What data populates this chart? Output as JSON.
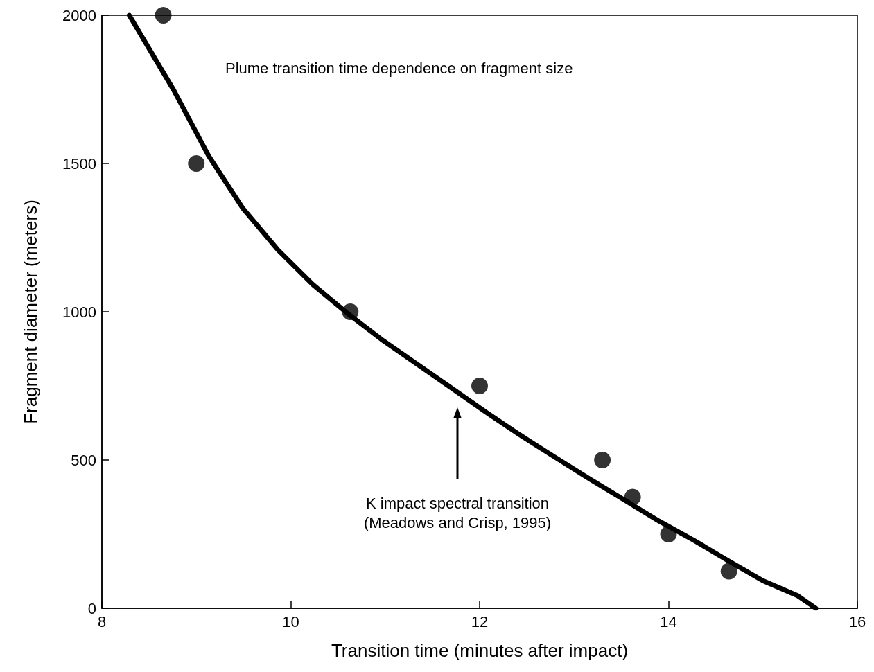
{
  "chart_data": {
    "type": "scatter",
    "title": "Plume transition time dependence on fragment size",
    "xlabel": "Transition time (minutes after impact)",
    "ylabel": "Fragment diameter (meters)",
    "xlim": [
      8,
      16
    ],
    "xticks": [
      8,
      10,
      12,
      14,
      16
    ],
    "ylim": [
      0,
      2000
    ],
    "yticks": [
      0,
      500,
      1000,
      1500,
      2000
    ],
    "grid": false,
    "annotations": [
      "K impact spectral transition\n(Meadows and Crisp, 1995)"
    ],
    "series": [
      {
        "type": "scatter",
        "color": "#000000",
        "marker": "circle",
        "x": [
          8.65,
          9.0,
          10.63,
          12.0,
          13.3,
          13.62,
          14.0,
          14.64
        ],
        "values": [
          2000,
          1500,
          1000,
          750,
          500,
          375,
          250,
          125
        ]
      },
      {
        "type": "line",
        "color": "#000000",
        "marker": "none",
        "line_style": "solid",
        "x": [
          8.29,
          8.76,
          9.13,
          9.49,
          9.86,
          10.23,
          10.6,
          10.96,
          11.33,
          11.7,
          12.07,
          12.43,
          12.8,
          13.17,
          13.54,
          13.9,
          14.27,
          14.64,
          15.0,
          15.37,
          15.56
        ],
        "values": [
          2000,
          1748,
          1526,
          1350,
          1210,
          1093,
          995,
          907,
          825,
          743,
          661,
          584,
          509,
          435,
          364,
          294,
          229,
          159,
          93,
          42,
          0
        ]
      }
    ]
  }
}
